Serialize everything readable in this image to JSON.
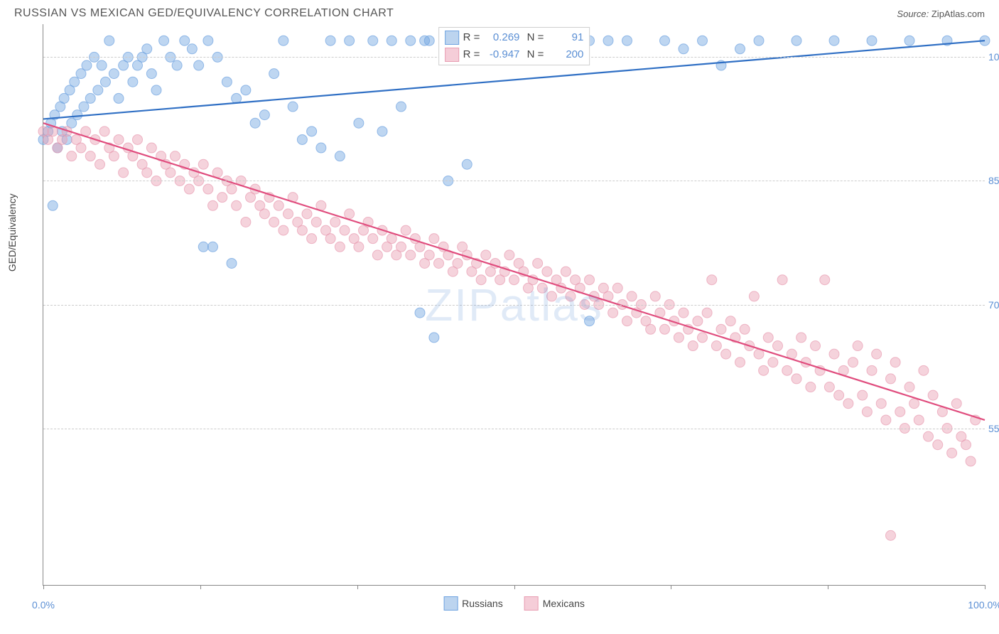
{
  "header": {
    "title": "RUSSIAN VS MEXICAN GED/EQUIVALENCY CORRELATION CHART",
    "source_label": "Source:",
    "source_value": "ZipAtlas.com"
  },
  "watermark": "ZIPatlas",
  "chart": {
    "type": "scatter",
    "y_axis_label": "GED/Equivalency",
    "xlim": [
      0,
      100
    ],
    "ylim": [
      36,
      104
    ],
    "y_gridlines": [
      55,
      70,
      85,
      100
    ],
    "y_tick_labels": [
      "55.0%",
      "70.0%",
      "85.0%",
      "100.0%"
    ],
    "x_ticks": [
      0,
      16.67,
      33.33,
      50,
      66.67,
      83.33,
      100
    ],
    "x_tick_labels": {
      "0": "0.0%",
      "100": "100.0%"
    },
    "background_color": "#ffffff",
    "grid_color": "#cccccc",
    "axis_color": "#888888",
    "marker_radius": 7,
    "marker_opacity": 0.45,
    "line_width": 2.2,
    "series": [
      {
        "name": "Russians",
        "color": "#6fa3e0",
        "swatch_fill": "#bcd4ef",
        "swatch_border": "#6fa3e0",
        "line_color": "#2f6fc4",
        "R": "0.269",
        "N": "91",
        "regression": {
          "x1": 0,
          "y1": 92.5,
          "x2": 100,
          "y2": 102
        },
        "points": [
          [
            0,
            90
          ],
          [
            0.5,
            91
          ],
          [
            0.8,
            92
          ],
          [
            1,
            82
          ],
          [
            1.2,
            93
          ],
          [
            1.5,
            89
          ],
          [
            1.8,
            94
          ],
          [
            2,
            91
          ],
          [
            2.2,
            95
          ],
          [
            2.5,
            90
          ],
          [
            2.8,
            96
          ],
          [
            3,
            92
          ],
          [
            3.3,
            97
          ],
          [
            3.6,
            93
          ],
          [
            4,
            98
          ],
          [
            4.3,
            94
          ],
          [
            4.6,
            99
          ],
          [
            5,
            95
          ],
          [
            5.4,
            100
          ],
          [
            5.8,
            96
          ],
          [
            6.2,
            99
          ],
          [
            6.6,
            97
          ],
          [
            7,
            102
          ],
          [
            7.5,
            98
          ],
          [
            8,
            95
          ],
          [
            8.5,
            99
          ],
          [
            9,
            100
          ],
          [
            9.5,
            97
          ],
          [
            10,
            99
          ],
          [
            10.5,
            100
          ],
          [
            11,
            101
          ],
          [
            11.5,
            98
          ],
          [
            12,
            96
          ],
          [
            12.8,
            102
          ],
          [
            13.5,
            100
          ],
          [
            14.2,
            99
          ],
          [
            15,
            102
          ],
          [
            15.8,
            101
          ],
          [
            16.5,
            99
          ],
          [
            17.5,
            102
          ],
          [
            18.5,
            100
          ],
          [
            19.5,
            97
          ],
          [
            20.5,
            95
          ],
          [
            21.5,
            96
          ],
          [
            22.5,
            92
          ],
          [
            23.5,
            93
          ],
          [
            24.5,
            98
          ],
          [
            25.5,
            102
          ],
          [
            26.5,
            94
          ],
          [
            27.5,
            90
          ],
          [
            28.5,
            91
          ],
          [
            29.5,
            89
          ],
          [
            30.5,
            102
          ],
          [
            31.5,
            88
          ],
          [
            32.5,
            102
          ],
          [
            33.5,
            92
          ],
          [
            35,
            102
          ],
          [
            36,
            91
          ],
          [
            37,
            102
          ],
          [
            38,
            94
          ],
          [
            39,
            102
          ],
          [
            40,
            69
          ],
          [
            41,
            102
          ],
          [
            43,
            85
          ],
          [
            45,
            87
          ],
          [
            47,
            102
          ],
          [
            17,
            77
          ],
          [
            18,
            77
          ],
          [
            20,
            75
          ],
          [
            41.5,
            66
          ],
          [
            50,
            102
          ],
          [
            52,
            102
          ],
          [
            54,
            100
          ],
          [
            56,
            102
          ],
          [
            58,
            102
          ],
          [
            60,
            102
          ],
          [
            62,
            102
          ],
          [
            58,
            68
          ],
          [
            66,
            102
          ],
          [
            68,
            101
          ],
          [
            70,
            102
          ],
          [
            72,
            99
          ],
          [
            74,
            101
          ],
          [
            76,
            102
          ],
          [
            80,
            102
          ],
          [
            84,
            102
          ],
          [
            88,
            102
          ],
          [
            92,
            102
          ],
          [
            96,
            102
          ],
          [
            100,
            102
          ],
          [
            40.5,
            102
          ]
        ]
      },
      {
        "name": "Mexicans",
        "color": "#e89db2",
        "swatch_fill": "#f5cdd8",
        "swatch_border": "#e89db2",
        "line_color": "#e04d7e",
        "R": "-0.947",
        "N": "200",
        "regression": {
          "x1": 0,
          "y1": 92,
          "x2": 100,
          "y2": 56
        },
        "points": [
          [
            0,
            91
          ],
          [
            0.5,
            90
          ],
          [
            1,
            91
          ],
          [
            1.5,
            89
          ],
          [
            2,
            90
          ],
          [
            2.5,
            91
          ],
          [
            3,
            88
          ],
          [
            3.5,
            90
          ],
          [
            4,
            89
          ],
          [
            4.5,
            91
          ],
          [
            5,
            88
          ],
          [
            5.5,
            90
          ],
          [
            6,
            87
          ],
          [
            6.5,
            91
          ],
          [
            7,
            89
          ],
          [
            7.5,
            88
          ],
          [
            8,
            90
          ],
          [
            8.5,
            86
          ],
          [
            9,
            89
          ],
          [
            9.5,
            88
          ],
          [
            10,
            90
          ],
          [
            10.5,
            87
          ],
          [
            11,
            86
          ],
          [
            11.5,
            89
          ],
          [
            12,
            85
          ],
          [
            12.5,
            88
          ],
          [
            13,
            87
          ],
          [
            13.5,
            86
          ],
          [
            14,
            88
          ],
          [
            14.5,
            85
          ],
          [
            15,
            87
          ],
          [
            15.5,
            84
          ],
          [
            16,
            86
          ],
          [
            16.5,
            85
          ],
          [
            17,
            87
          ],
          [
            17.5,
            84
          ],
          [
            18,
            82
          ],
          [
            18.5,
            86
          ],
          [
            19,
            83
          ],
          [
            19.5,
            85
          ],
          [
            20,
            84
          ],
          [
            20.5,
            82
          ],
          [
            21,
            85
          ],
          [
            21.5,
            80
          ],
          [
            22,
            83
          ],
          [
            22.5,
            84
          ],
          [
            23,
            82
          ],
          [
            23.5,
            81
          ],
          [
            24,
            83
          ],
          [
            24.5,
            80
          ],
          [
            25,
            82
          ],
          [
            25.5,
            79
          ],
          [
            26,
            81
          ],
          [
            26.5,
            83
          ],
          [
            27,
            80
          ],
          [
            27.5,
            79
          ],
          [
            28,
            81
          ],
          [
            28.5,
            78
          ],
          [
            29,
            80
          ],
          [
            29.5,
            82
          ],
          [
            30,
            79
          ],
          [
            30.5,
            78
          ],
          [
            31,
            80
          ],
          [
            31.5,
            77
          ],
          [
            32,
            79
          ],
          [
            32.5,
            81
          ],
          [
            33,
            78
          ],
          [
            33.5,
            77
          ],
          [
            34,
            79
          ],
          [
            34.5,
            80
          ],
          [
            35,
            78
          ],
          [
            35.5,
            76
          ],
          [
            36,
            79
          ],
          [
            36.5,
            77
          ],
          [
            37,
            78
          ],
          [
            37.5,
            76
          ],
          [
            38,
            77
          ],
          [
            38.5,
            79
          ],
          [
            39,
            76
          ],
          [
            39.5,
            78
          ],
          [
            40,
            77
          ],
          [
            40.5,
            75
          ],
          [
            41,
            76
          ],
          [
            41.5,
            78
          ],
          [
            42,
            75
          ],
          [
            42.5,
            77
          ],
          [
            43,
            76
          ],
          [
            43.5,
            74
          ],
          [
            44,
            75
          ],
          [
            44.5,
            77
          ],
          [
            45,
            76
          ],
          [
            45.5,
            74
          ],
          [
            46,
            75
          ],
          [
            46.5,
            73
          ],
          [
            47,
            76
          ],
          [
            47.5,
            74
          ],
          [
            48,
            75
          ],
          [
            48.5,
            73
          ],
          [
            49,
            74
          ],
          [
            49.5,
            76
          ],
          [
            50,
            73
          ],
          [
            50.5,
            75
          ],
          [
            51,
            74
          ],
          [
            51.5,
            72
          ],
          [
            52,
            73
          ],
          [
            52.5,
            75
          ],
          [
            53,
            72
          ],
          [
            53.5,
            74
          ],
          [
            54,
            71
          ],
          [
            54.5,
            73
          ],
          [
            55,
            72
          ],
          [
            55.5,
            74
          ],
          [
            56,
            71
          ],
          [
            56.5,
            73
          ],
          [
            57,
            72
          ],
          [
            57.5,
            70
          ],
          [
            58,
            73
          ],
          [
            58.5,
            71
          ],
          [
            59,
            70
          ],
          [
            59.5,
            72
          ],
          [
            60,
            71
          ],
          [
            60.5,
            69
          ],
          [
            61,
            72
          ],
          [
            61.5,
            70
          ],
          [
            62,
            68
          ],
          [
            62.5,
            71
          ],
          [
            63,
            69
          ],
          [
            63.5,
            70
          ],
          [
            64,
            68
          ],
          [
            64.5,
            67
          ],
          [
            65,
            71
          ],
          [
            65.5,
            69
          ],
          [
            66,
            67
          ],
          [
            66.5,
            70
          ],
          [
            67,
            68
          ],
          [
            67.5,
            66
          ],
          [
            68,
            69
          ],
          [
            68.5,
            67
          ],
          [
            69,
            65
          ],
          [
            69.5,
            68
          ],
          [
            70,
            66
          ],
          [
            70.5,
            69
          ],
          [
            71,
            73
          ],
          [
            71.5,
            65
          ],
          [
            72,
            67
          ],
          [
            72.5,
            64
          ],
          [
            73,
            68
          ],
          [
            73.5,
            66
          ],
          [
            74,
            63
          ],
          [
            74.5,
            67
          ],
          [
            75,
            65
          ],
          [
            75.5,
            71
          ],
          [
            76,
            64
          ],
          [
            76.5,
            62
          ],
          [
            77,
            66
          ],
          [
            77.5,
            63
          ],
          [
            78,
            65
          ],
          [
            78.5,
            73
          ],
          [
            79,
            62
          ],
          [
            79.5,
            64
          ],
          [
            80,
            61
          ],
          [
            80.5,
            66
          ],
          [
            81,
            63
          ],
          [
            81.5,
            60
          ],
          [
            82,
            65
          ],
          [
            82.5,
            62
          ],
          [
            83,
            73
          ],
          [
            83.5,
            60
          ],
          [
            84,
            64
          ],
          [
            84.5,
            59
          ],
          [
            85,
            62
          ],
          [
            85.5,
            58
          ],
          [
            86,
            63
          ],
          [
            86.5,
            65
          ],
          [
            87,
            59
          ],
          [
            87.5,
            57
          ],
          [
            88,
            62
          ],
          [
            88.5,
            64
          ],
          [
            89,
            58
          ],
          [
            89.5,
            56
          ],
          [
            90,
            61
          ],
          [
            90.5,
            63
          ],
          [
            91,
            57
          ],
          [
            91.5,
            55
          ],
          [
            92,
            60
          ],
          [
            92.5,
            58
          ],
          [
            93,
            56
          ],
          [
            93.5,
            62
          ],
          [
            94,
            54
          ],
          [
            94.5,
            59
          ],
          [
            95,
            53
          ],
          [
            95.5,
            57
          ],
          [
            96,
            55
          ],
          [
            96.5,
            52
          ],
          [
            97,
            58
          ],
          [
            97.5,
            54
          ],
          [
            98,
            53
          ],
          [
            98.5,
            51
          ],
          [
            99,
            56
          ],
          [
            90,
            42
          ]
        ]
      }
    ]
  },
  "bottom_legend": [
    {
      "label": "Russians",
      "fill": "#bcd4ef",
      "border": "#6fa3e0"
    },
    {
      "label": "Mexicans",
      "fill": "#f5cdd8",
      "border": "#e89db2"
    }
  ]
}
